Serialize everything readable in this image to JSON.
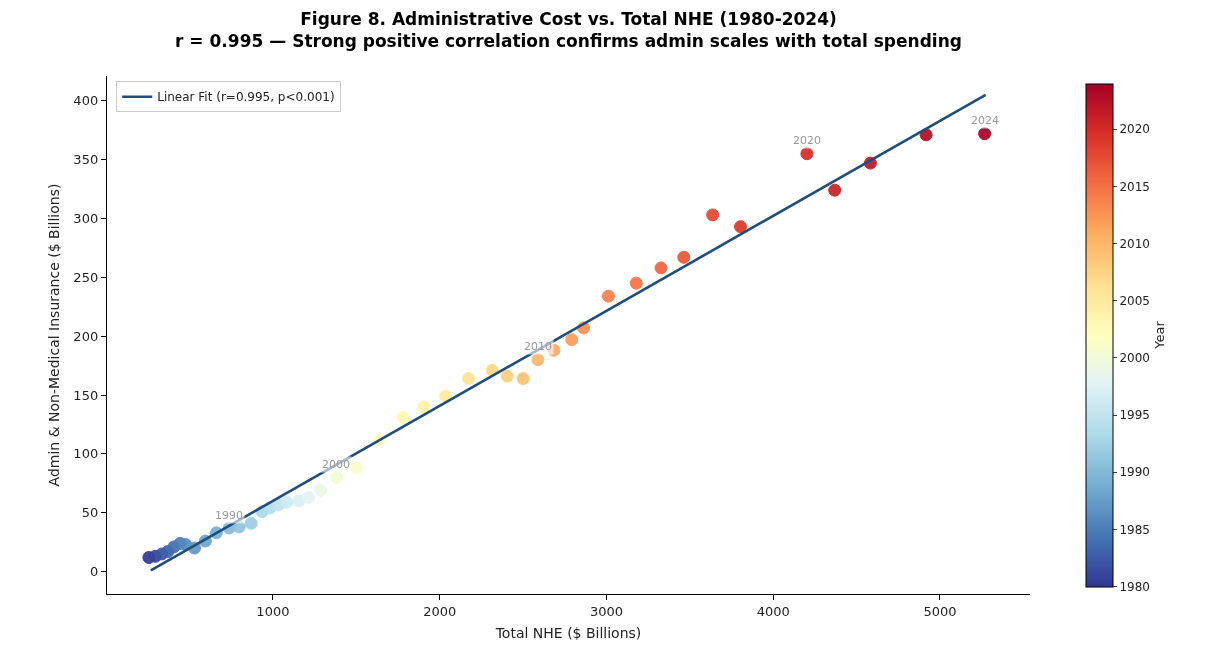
{
  "chart_data": {
    "type": "scatter",
    "title": "Figure 8. Administrative Cost vs. Total NHE (1980-2024)",
    "subtitle": "r = 0.995 — Strong positive correlation confirms admin scales with total spending",
    "xlabel": "Total NHE ($ Billions)",
    "ylabel": "Admin & Non-Medical Insurance ($ Billions)",
    "clabel": "Year",
    "xlim": [
      5,
      5540
    ],
    "xticks": [
      1000,
      2000,
      3000,
      4000,
      5000
    ],
    "ylim": [
      -19,
      421
    ],
    "yticks": [
      0,
      50,
      100,
      150,
      200,
      250,
      300,
      350,
      400
    ],
    "clim": [
      1980,
      2024
    ],
    "cticks": [
      1980,
      1985,
      1990,
      1995,
      2000,
      2005,
      2010,
      2015,
      2020
    ],
    "grid": false,
    "legend": "top left",
    "marker": "circle",
    "series": [
      {
        "type": "scatter",
        "colors": [
          "#313695",
          "#35449c",
          "#3a53a3",
          "#3f61aa",
          "#436fb1",
          "#4b7db8",
          "#5689bf",
          "#6196c5",
          "#6ca3cc",
          "#76afd2",
          "#83b9d7",
          "#90c3dd",
          "#9ccfe4",
          "#a8d7e8",
          "#b5ddec",
          "#c1e4ef",
          "#cde9f3",
          "#d9f0f6",
          "#e3f4f3",
          "#eaf7e4",
          "#f1fad5",
          "#f8fcc8",
          "#ffffbf",
          "#fff8b3",
          "#fff1a8",
          "#ffea9d",
          "#fee394",
          "#fed989",
          "#fece7f",
          "#fec274",
          "#fdb769",
          "#fdab60",
          "#fb9c59",
          "#f98e52",
          "#f67f4b",
          "#f47044",
          "#ef623e",
          "#e85439",
          "#e14632",
          "#db392a",
          "#d22c27",
          "#c72127",
          "#bc1626",
          "#b10b26",
          "#a50026"
        ],
        "x": [
          256,
          295,
          334,
          369,
          406,
          444,
          476,
          530,
          595,
          661,
          738,
          798,
          870,
          935,
          982,
          1035,
          1083,
          1155,
          1214,
          1286,
          1381,
          1500,
          1637,
          1780,
          1905,
          2036,
          2173,
          2315,
          2405,
          2500,
          2589,
          2685,
          2792,
          2863,
          3012,
          3179,
          3327,
          3464,
          3637,
          3804,
          4202,
          4369,
          4583,
          4917,
          5268
        ],
        "values": [
          12,
          13,
          15,
          17,
          21,
          24,
          23,
          20,
          26,
          33,
          37,
          38,
          41,
          51,
          54,
          57,
          59,
          60,
          63,
          69,
          80,
          88,
          112,
          131,
          140,
          149,
          164,
          171,
          166,
          164,
          180,
          188,
          197,
          207,
          234,
          245,
          258,
          267,
          303,
          293,
          355,
          324,
          347,
          371,
          372
        ],
        "cvalues": [
          1980,
          1981,
          1982,
          1983,
          1984,
          1985,
          1986,
          1987,
          1988,
          1989,
          1990,
          1991,
          1992,
          1993,
          1994,
          1995,
          1996,
          1997,
          1998,
          1999,
          2000,
          2001,
          2002,
          2003,
          2004,
          2005,
          2006,
          2007,
          2008,
          2009,
          2010,
          2011,
          2012,
          2013,
          2014,
          2015,
          2016,
          2017,
          2018,
          2019,
          2020,
          2021,
          2022,
          2023,
          2024
        ]
      },
      {
        "type": "line",
        "name": "Linear Fit (r=0.995, p<0.001)",
        "color": "#1f4e79",
        "line_style": "solid",
        "marker": "none",
        "x": [
          268,
          5274
        ],
        "values": [
          1,
          405
        ]
      }
    ],
    "annotations": [
      {
        "text": "1990",
        "x": 738,
        "y": 37
      },
      {
        "text": "2000",
        "x": 1381,
        "y": 80
      },
      {
        "text": "2010",
        "x": 2589,
        "y": 180
      },
      {
        "text": "2020",
        "x": 4202,
        "y": 355
      },
      {
        "text": "2024",
        "x": 5268,
        "y": 372
      }
    ]
  }
}
